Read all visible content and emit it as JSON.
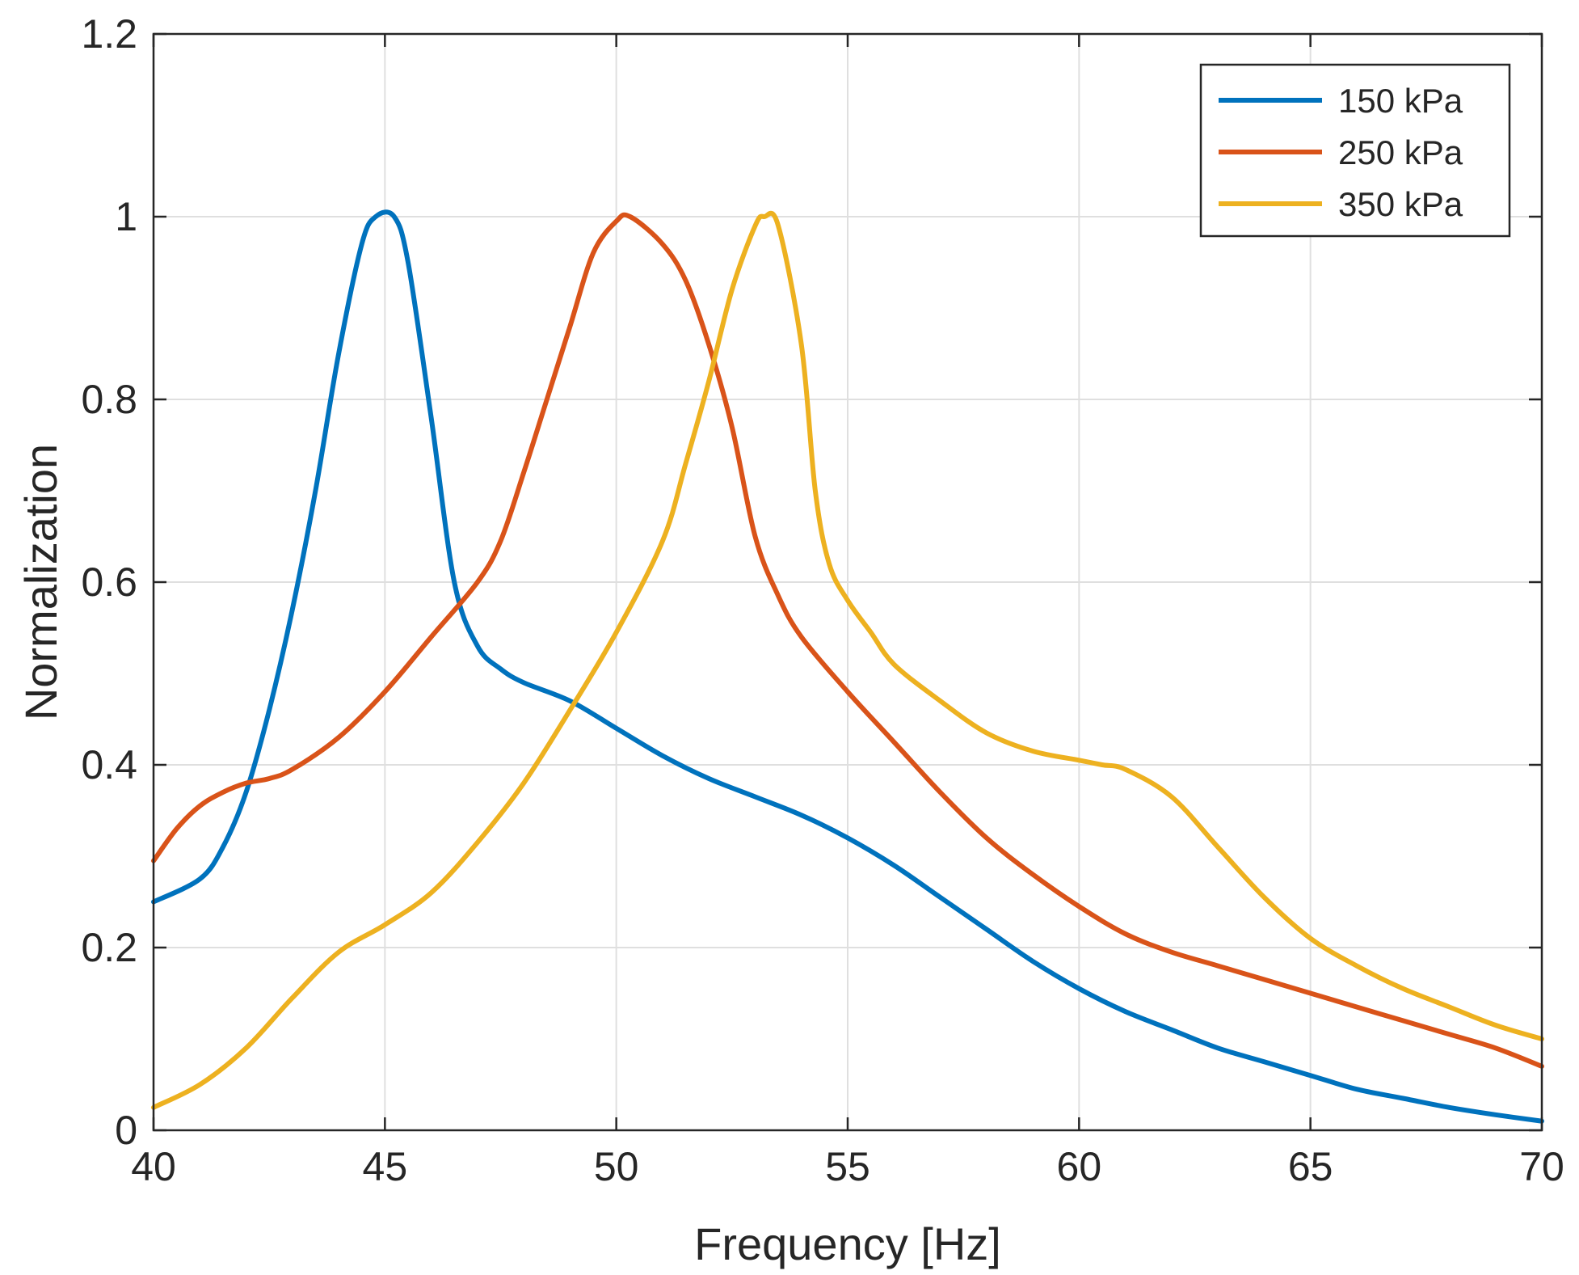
{
  "chart_data": {
    "type": "line",
    "title": "",
    "xlabel": "Frequency [Hz]",
    "ylabel": "Normalization",
    "xlim": [
      40,
      70
    ],
    "ylim": [
      0,
      1.2
    ],
    "xticks": [
      "40",
      "45",
      "50",
      "55",
      "60",
      "65",
      "70"
    ],
    "yticks": [
      "0",
      "0.2",
      "0.4",
      "0.6",
      "0.8",
      "1",
      "1.2"
    ],
    "grid": true,
    "legend_position": "top-right",
    "series": [
      {
        "name": "150 kPa",
        "color": "#0072BD",
        "x": [
          40,
          41,
          41.5,
          42,
          42.5,
          43,
          43.5,
          44,
          44.5,
          44.8,
          45.2,
          45.5,
          46,
          46.5,
          47,
          47.5,
          48,
          49,
          50,
          51,
          52,
          53,
          54,
          55,
          56,
          57,
          58,
          59,
          60,
          61,
          62,
          63,
          64,
          65,
          66,
          67,
          68,
          69,
          70
        ],
        "values": [
          0.25,
          0.275,
          0.31,
          0.37,
          0.46,
          0.57,
          0.7,
          0.85,
          0.97,
          1.0,
          1.0,
          0.95,
          0.78,
          0.6,
          0.53,
          0.505,
          0.49,
          0.47,
          0.44,
          0.41,
          0.385,
          0.365,
          0.345,
          0.32,
          0.29,
          0.255,
          0.22,
          0.185,
          0.155,
          0.13,
          0.11,
          0.09,
          0.075,
          0.06,
          0.045,
          0.035,
          0.025,
          0.017,
          0.01
        ]
      },
      {
        "name": "250 kPa",
        "color": "#D95319",
        "x": [
          40,
          40.5,
          41,
          41.5,
          42,
          42.5,
          43,
          44,
          45,
          46,
          47,
          47.5,
          48,
          48.5,
          49,
          49.5,
          50,
          50.3,
          51,
          51.5,
          52,
          52.5,
          53,
          53.5,
          54,
          55,
          56,
          57,
          58,
          59,
          60,
          61,
          62,
          63,
          64,
          65,
          66,
          67,
          68,
          69,
          70
        ],
        "values": [
          0.295,
          0.33,
          0.355,
          0.37,
          0.38,
          0.385,
          0.395,
          0.43,
          0.48,
          0.54,
          0.6,
          0.645,
          0.72,
          0.8,
          0.88,
          0.96,
          0.995,
          1.0,
          0.97,
          0.93,
          0.86,
          0.77,
          0.65,
          0.585,
          0.54,
          0.48,
          0.425,
          0.37,
          0.32,
          0.28,
          0.245,
          0.215,
          0.195,
          0.18,
          0.165,
          0.15,
          0.135,
          0.12,
          0.105,
          0.09,
          0.07
        ]
      },
      {
        "name": "350 kPa",
        "color": "#EDB120",
        "x": [
          40,
          41,
          42,
          43,
          44,
          45,
          46,
          47,
          48,
          49,
          50,
          51,
          51.5,
          52,
          52.5,
          53,
          53.2,
          53.5,
          54,
          54.3,
          54.6,
          55,
          55.5,
          56,
          57,
          58,
          59,
          60,
          60.5,
          61,
          62,
          63,
          64,
          65,
          66,
          67,
          68,
          69,
          70
        ],
        "values": [
          0.025,
          0.05,
          0.09,
          0.145,
          0.195,
          0.225,
          0.26,
          0.315,
          0.38,
          0.46,
          0.545,
          0.645,
          0.73,
          0.82,
          0.92,
          0.99,
          1.0,
          0.99,
          0.86,
          0.7,
          0.62,
          0.58,
          0.545,
          0.51,
          0.47,
          0.435,
          0.415,
          0.405,
          0.4,
          0.395,
          0.365,
          0.31,
          0.255,
          0.21,
          0.18,
          0.155,
          0.135,
          0.115,
          0.1
        ]
      }
    ]
  }
}
